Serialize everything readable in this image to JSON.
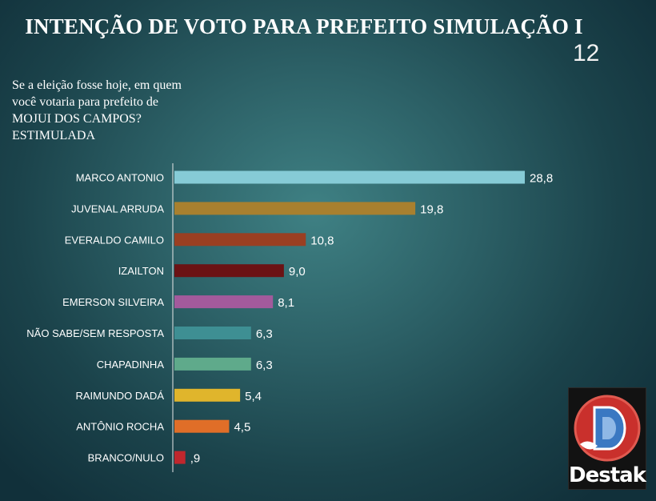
{
  "header": {
    "title": "INTENÇÃO DE VOTO PARA PREFEITO SIMULAÇÃO I",
    "page_number": "12"
  },
  "question": "Se a eleição fosse hoje, em quem você votaria para prefeito de MOJUI DOS CAMPOS? ESTIMULADA",
  "logo": {
    "text": "Destak"
  },
  "chart_data": {
    "type": "bar",
    "orientation": "horizontal",
    "categories": [
      "MARCO ANTONIO",
      "JUVENAL ARRUDA",
      "EVERALDO CAMILO",
      "IZAILTON",
      "EMERSON SILVEIRA",
      "NÃO SABE/SEM RESPOSTA",
      "CHAPADINHA",
      "RAIMUNDO DADÁ",
      "ANTÔNIO ROCHA",
      "BRANCO/NULO"
    ],
    "values": [
      28.8,
      19.8,
      10.8,
      9.0,
      8.1,
      6.3,
      6.3,
      5.4,
      4.5,
      0.9
    ],
    "value_labels": [
      "28,8",
      "19,8",
      "10,8",
      "9,0",
      "8,1",
      "6,3",
      "6,3",
      "5,4",
      "4,5",
      ",9"
    ],
    "colors": [
      "#86cbd6",
      "#a8802f",
      "#9a3f22",
      "#6b1214",
      "#a35a9c",
      "#3e8f93",
      "#5faa8b",
      "#e0b52c",
      "#e06e28",
      "#c0272d"
    ],
    "xlim": [
      0,
      28.8
    ],
    "grid": false,
    "legend": "none"
  }
}
